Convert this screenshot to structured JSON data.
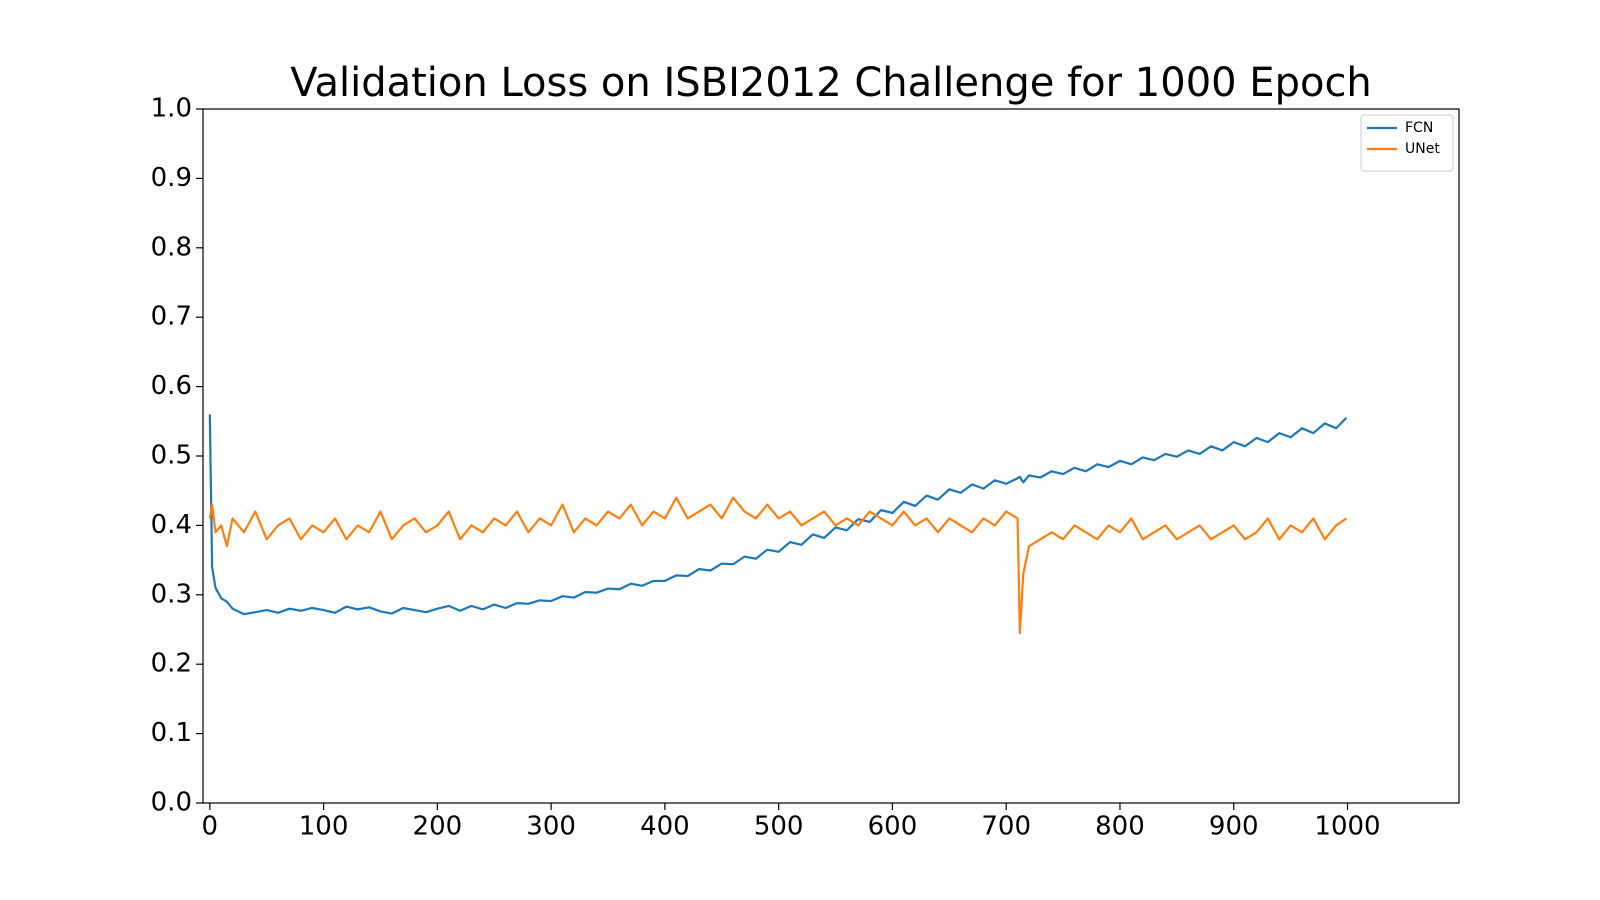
{
  "chart_data": {
    "type": "line",
    "title": "Validation Loss on ISBI2012 Challenge for 1000 Epoch",
    "x": [
      0,
      2,
      5,
      10,
      15,
      20,
      30,
      40,
      50,
      60,
      70,
      80,
      90,
      100,
      110,
      120,
      130,
      140,
      150,
      160,
      170,
      180,
      190,
      200,
      210,
      220,
      230,
      240,
      250,
      260,
      270,
      280,
      290,
      300,
      310,
      320,
      330,
      340,
      350,
      360,
      370,
      380,
      390,
      400,
      410,
      420,
      430,
      440,
      450,
      460,
      470,
      480,
      490,
      500,
      510,
      520,
      530,
      540,
      550,
      560,
      570,
      580,
      590,
      600,
      610,
      620,
      630,
      640,
      650,
      660,
      670,
      680,
      690,
      700,
      710,
      712,
      715,
      720,
      730,
      740,
      750,
      760,
      770,
      780,
      790,
      800,
      810,
      820,
      830,
      840,
      850,
      860,
      870,
      880,
      890,
      900,
      910,
      920,
      930,
      940,
      950,
      960,
      970,
      980,
      990,
      999
    ],
    "series": [
      {
        "name": "FCN",
        "color": "#1f77b4",
        "values": [
          0.56,
          0.34,
          0.31,
          0.295,
          0.29,
          0.28,
          0.272,
          0.275,
          0.278,
          0.274,
          0.28,
          0.277,
          0.281,
          0.278,
          0.274,
          0.283,
          0.279,
          0.282,
          0.276,
          0.273,
          0.281,
          0.278,
          0.275,
          0.28,
          0.284,
          0.277,
          0.284,
          0.279,
          0.286,
          0.281,
          0.288,
          0.287,
          0.292,
          0.291,
          0.298,
          0.296,
          0.304,
          0.303,
          0.309,
          0.308,
          0.316,
          0.313,
          0.32,
          0.32,
          0.328,
          0.327,
          0.337,
          0.335,
          0.345,
          0.344,
          0.355,
          0.352,
          0.365,
          0.362,
          0.376,
          0.372,
          0.387,
          0.382,
          0.397,
          0.393,
          0.409,
          0.405,
          0.422,
          0.418,
          0.434,
          0.428,
          0.443,
          0.437,
          0.452,
          0.447,
          0.459,
          0.453,
          0.465,
          0.46,
          0.468,
          0.47,
          0.462,
          0.472,
          0.469,
          0.478,
          0.474,
          0.483,
          0.478,
          0.488,
          0.484,
          0.493,
          0.488,
          0.498,
          0.494,
          0.503,
          0.499,
          0.508,
          0.503,
          0.514,
          0.508,
          0.52,
          0.514,
          0.526,
          0.52,
          0.533,
          0.527,
          0.54,
          0.533,
          0.547,
          0.54,
          0.555
        ]
      },
      {
        "name": "UNet",
        "color": "#ff7f0e",
        "values": [
          0.41,
          0.43,
          0.39,
          0.4,
          0.37,
          0.41,
          0.39,
          0.42,
          0.38,
          0.4,
          0.41,
          0.38,
          0.4,
          0.39,
          0.41,
          0.38,
          0.4,
          0.39,
          0.42,
          0.38,
          0.4,
          0.41,
          0.39,
          0.4,
          0.42,
          0.38,
          0.4,
          0.39,
          0.41,
          0.4,
          0.42,
          0.39,
          0.41,
          0.4,
          0.43,
          0.39,
          0.41,
          0.4,
          0.42,
          0.41,
          0.43,
          0.4,
          0.42,
          0.41,
          0.44,
          0.41,
          0.42,
          0.43,
          0.41,
          0.44,
          0.42,
          0.41,
          0.43,
          0.41,
          0.42,
          0.4,
          0.41,
          0.42,
          0.4,
          0.41,
          0.4,
          0.42,
          0.41,
          0.4,
          0.42,
          0.4,
          0.41,
          0.39,
          0.41,
          0.4,
          0.39,
          0.41,
          0.4,
          0.42,
          0.41,
          0.245,
          0.33,
          0.37,
          0.38,
          0.39,
          0.38,
          0.4,
          0.39,
          0.38,
          0.4,
          0.39,
          0.41,
          0.38,
          0.39,
          0.4,
          0.38,
          0.39,
          0.4,
          0.38,
          0.39,
          0.4,
          0.38,
          0.39,
          0.41,
          0.38,
          0.4,
          0.39,
          0.41,
          0.38,
          0.4,
          0.41
        ]
      }
    ],
    "xlim": [
      -6,
      1098
    ],
    "xticks": [
      0,
      100,
      200,
      300,
      400,
      500,
      600,
      700,
      800,
      900,
      1000
    ],
    "ylim": [
      0,
      1
    ],
    "yticks": [
      {
        "value": 0,
        "label": "0.0"
      },
      0.1,
      0.2,
      0.3,
      0.4,
      0.5,
      0.6,
      0.7,
      0.8,
      0.9,
      {
        "value": 1,
        "label": "1.0"
      }
    ],
    "legend": "upper right"
  }
}
